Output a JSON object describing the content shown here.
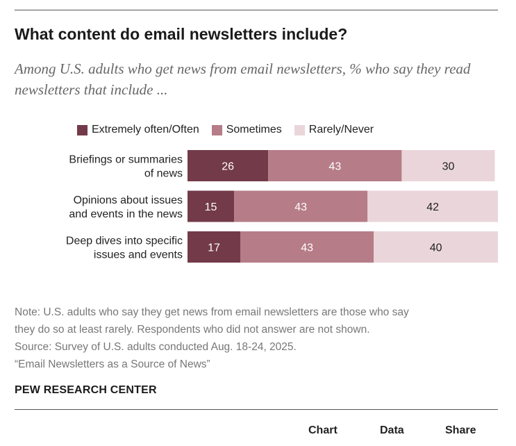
{
  "header": {
    "title": "What content do email newsletters include?",
    "subtitle": "Among U.S. adults who get news from email newsletters, % who say they read newsletters that include ..."
  },
  "legend": [
    {
      "label": "Extremely often/Often",
      "color": "#733a49"
    },
    {
      "label": "Sometimes",
      "color": "#b67c88"
    },
    {
      "label": "Rarely/Never",
      "color": "#ead6da"
    }
  ],
  "chart_data": {
    "type": "bar",
    "orientation": "horizontal",
    "stacked": true,
    "categories": [
      [
        "Briefings or summaries",
        "of news"
      ],
      [
        "Opinions about issues",
        "and events in the news"
      ],
      [
        "Deep dives into specific",
        "issues and events"
      ]
    ],
    "series": [
      {
        "name": "Extremely often/Often",
        "values": [
          26,
          15,
          17
        ],
        "color": "#733a49"
      },
      {
        "name": "Sometimes",
        "values": [
          43,
          43,
          43
        ],
        "color": "#b67c88"
      },
      {
        "name": "Rarely/Never",
        "values": [
          30,
          42,
          40
        ],
        "color": "#ead6da"
      }
    ],
    "xlim": [
      0,
      100
    ],
    "legend_position": "top",
    "grid": false
  },
  "footer": {
    "note_lines": [
      "Note: U.S. adults who say they get news from email newsletters are those who say",
      "they do so at least rarely. Respondents who did not answer are not shown.",
      "Source: Survey of U.S. adults conducted Aug. 18-24, 2025.",
      "“Email Newsletters as a Source of News”"
    ],
    "logo": "PEW RESEARCH CENTER"
  },
  "tabs": {
    "chart": "Chart",
    "data": "Data",
    "share": "Share"
  }
}
